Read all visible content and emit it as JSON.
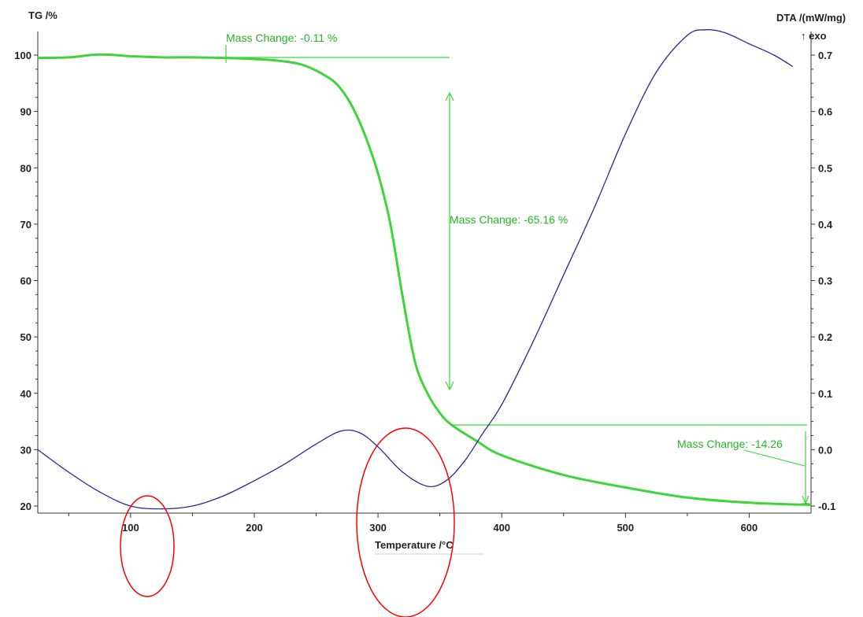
{
  "chart_data": {
    "type": "line",
    "title": "",
    "xlabel": "Temperature /°C",
    "ylabel_left": "TG /%",
    "ylabel_right": "DTA /(mW/mg)",
    "ylabel_right_sub": "↑ exo",
    "xlim": [
      25,
      650
    ],
    "ylim_left": [
      20,
      100
    ],
    "ylim_right": [
      -0.1,
      0.7
    ],
    "grid": false,
    "x_ticks": [
      "100",
      "200",
      "300",
      "400",
      "500",
      "600"
    ],
    "y_left_ticks": [
      "100",
      "90",
      "80",
      "70",
      "60",
      "50",
      "40",
      "30",
      "20"
    ],
    "y_right_ticks": [
      "0.7",
      "0.6",
      "0.5",
      "0.4",
      "0.3",
      "0.2",
      "0.1",
      "0.0",
      "-0.1"
    ],
    "series": [
      {
        "axis": "left",
        "color": "#3fd53a",
        "x": [
          25,
          50,
          75,
          100,
          125,
          150,
          175,
          200,
          220,
          240,
          260,
          270,
          280,
          290,
          300,
          310,
          320,
          330,
          340,
          350,
          360,
          380,
          400,
          450,
          500,
          550,
          600,
          650
        ],
        "y": [
          99.5,
          99.6,
          100.1,
          99.8,
          99.6,
          99.6,
          99.5,
          99.3,
          99.0,
          98.2,
          96.0,
          94.0,
          90.5,
          85.5,
          79.0,
          70.0,
          57.0,
          45.5,
          40.0,
          36.5,
          34.3,
          31.5,
          29.0,
          25.5,
          23.3,
          21.5,
          20.6,
          20.2
        ]
      },
      {
        "axis": "right",
        "color": "#28289a",
        "x": [
          25,
          50,
          75,
          100,
          125,
          150,
          175,
          200,
          225,
          250,
          270,
          285,
          300,
          320,
          340,
          355,
          370,
          385,
          400,
          425,
          450,
          475,
          500,
          525,
          550,
          565,
          580,
          600,
          620,
          635
        ],
        "y": [
          0.0,
          -0.04,
          -0.075,
          -0.1,
          -0.105,
          -0.1,
          -0.082,
          -0.055,
          -0.025,
          0.01,
          0.033,
          0.03,
          0.005,
          -0.04,
          -0.065,
          -0.055,
          -0.02,
          0.03,
          0.08,
          0.19,
          0.31,
          0.43,
          0.56,
          0.67,
          0.735,
          0.745,
          0.74,
          0.72,
          0.7,
          0.68
        ]
      }
    ],
    "annotations": [
      {
        "text": "Mass Change: -0.11 %"
      },
      {
        "text": "Mass Change: -65.16 %"
      },
      {
        "text": "Mass Change: -14.26"
      }
    ],
    "highlights": [
      {
        "shape": "ellipse",
        "color": "#ff0000",
        "around_x": 108
      },
      {
        "shape": "ellipse",
        "color": "#ff0000",
        "around_x": 325
      }
    ]
  }
}
